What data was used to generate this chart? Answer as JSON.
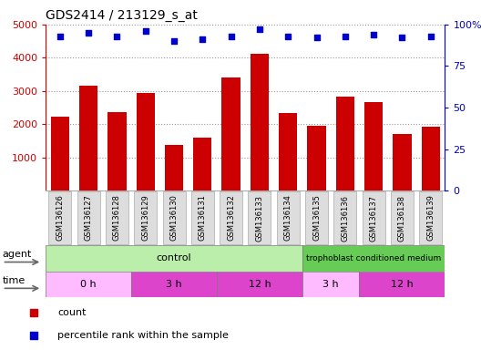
{
  "title": "GDS2414 / 213129_s_at",
  "samples": [
    "GSM136126",
    "GSM136127",
    "GSM136128",
    "GSM136129",
    "GSM136130",
    "GSM136131",
    "GSM136132",
    "GSM136133",
    "GSM136134",
    "GSM136135",
    "GSM136136",
    "GSM136137",
    "GSM136138",
    "GSM136139"
  ],
  "counts": [
    2230,
    3150,
    2370,
    2950,
    1390,
    1600,
    3420,
    4130,
    2330,
    1950,
    2830,
    2660,
    1720,
    1930
  ],
  "percentile_ranks": [
    93,
    95,
    93,
    96,
    90,
    91,
    93,
    97,
    93,
    92,
    93,
    94,
    92,
    93
  ],
  "bar_color": "#cc0000",
  "dot_color": "#0000cc",
  "ylim_left": [
    0,
    5000
  ],
  "ylim_right": [
    0,
    100
  ],
  "yticks_left": [
    1000,
    2000,
    3000,
    4000,
    5000
  ],
  "yticks_right": [
    0,
    25,
    50,
    75,
    100
  ],
  "control_color": "#aaddaa",
  "troph_color": "#66cc66",
  "time_light": "#ffbbff",
  "time_dark": "#dd44cc",
  "agent_label": "agent",
  "time_label": "time",
  "legend_count": "count",
  "legend_pct": "percentile rank within the sample"
}
